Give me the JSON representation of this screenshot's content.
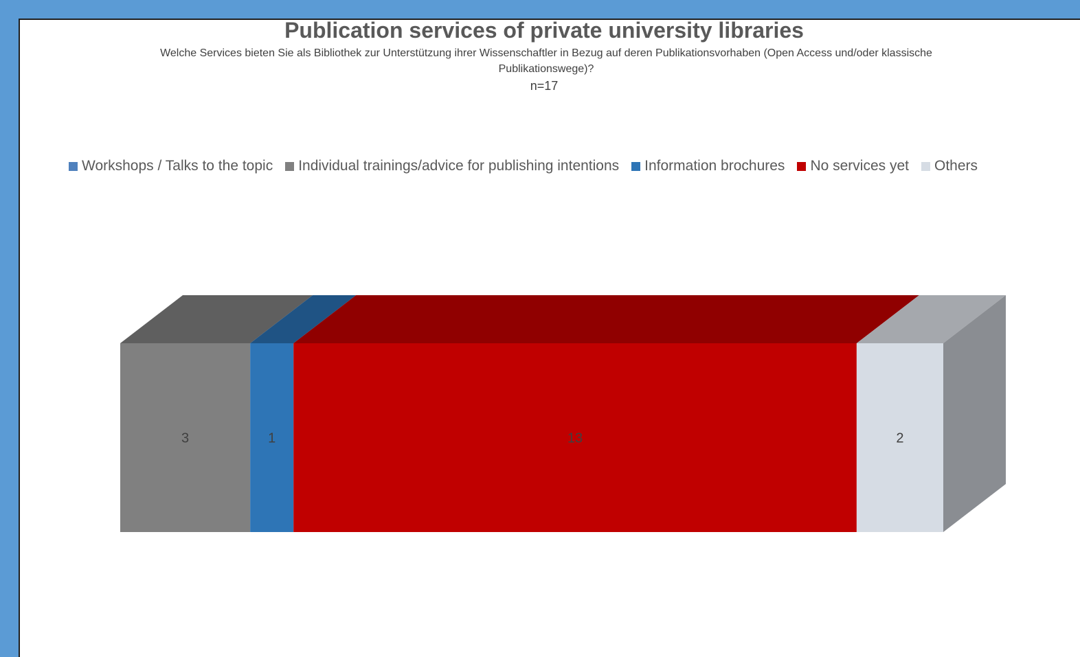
{
  "chart_data": {
    "type": "bar",
    "orientation": "horizontal-stacked-3d",
    "title": "Publication services of private university libraries",
    "subtitle": "Welche Services bieten Sie als Bibliothek zur Unterstützung ihrer Wissenschaftler in Bezug auf deren Publikationsvorhaben (Open Access und/oder klassische Publikationswege)?",
    "note": "n=17",
    "legend_position": "top",
    "grid": false,
    "categories": [
      ""
    ],
    "series": [
      {
        "name": "Workshops / Talks to the topic",
        "values": [
          0
        ],
        "color": "#4f81bd",
        "top_color": "#3a6290",
        "label": ""
      },
      {
        "name": "Individual trainings/advice for publishing intentions",
        "values": [
          3
        ],
        "color": "#808080",
        "top_color": "#5f5f5f",
        "label": "3"
      },
      {
        "name": "Information brochures",
        "values": [
          1
        ],
        "color": "#2e75b6",
        "top_color": "#1f5384",
        "label": "1"
      },
      {
        "name": "No services yet",
        "values": [
          13
        ],
        "color": "#c00000",
        "top_color": "#900000",
        "label": "13"
      },
      {
        "name": "Others",
        "values": [
          2
        ],
        "color": "#d6dce4",
        "top_color": "#a5a8ad",
        "label": "2"
      }
    ],
    "xlim": [
      0,
      19
    ],
    "side_color": "#8a8d92"
  }
}
